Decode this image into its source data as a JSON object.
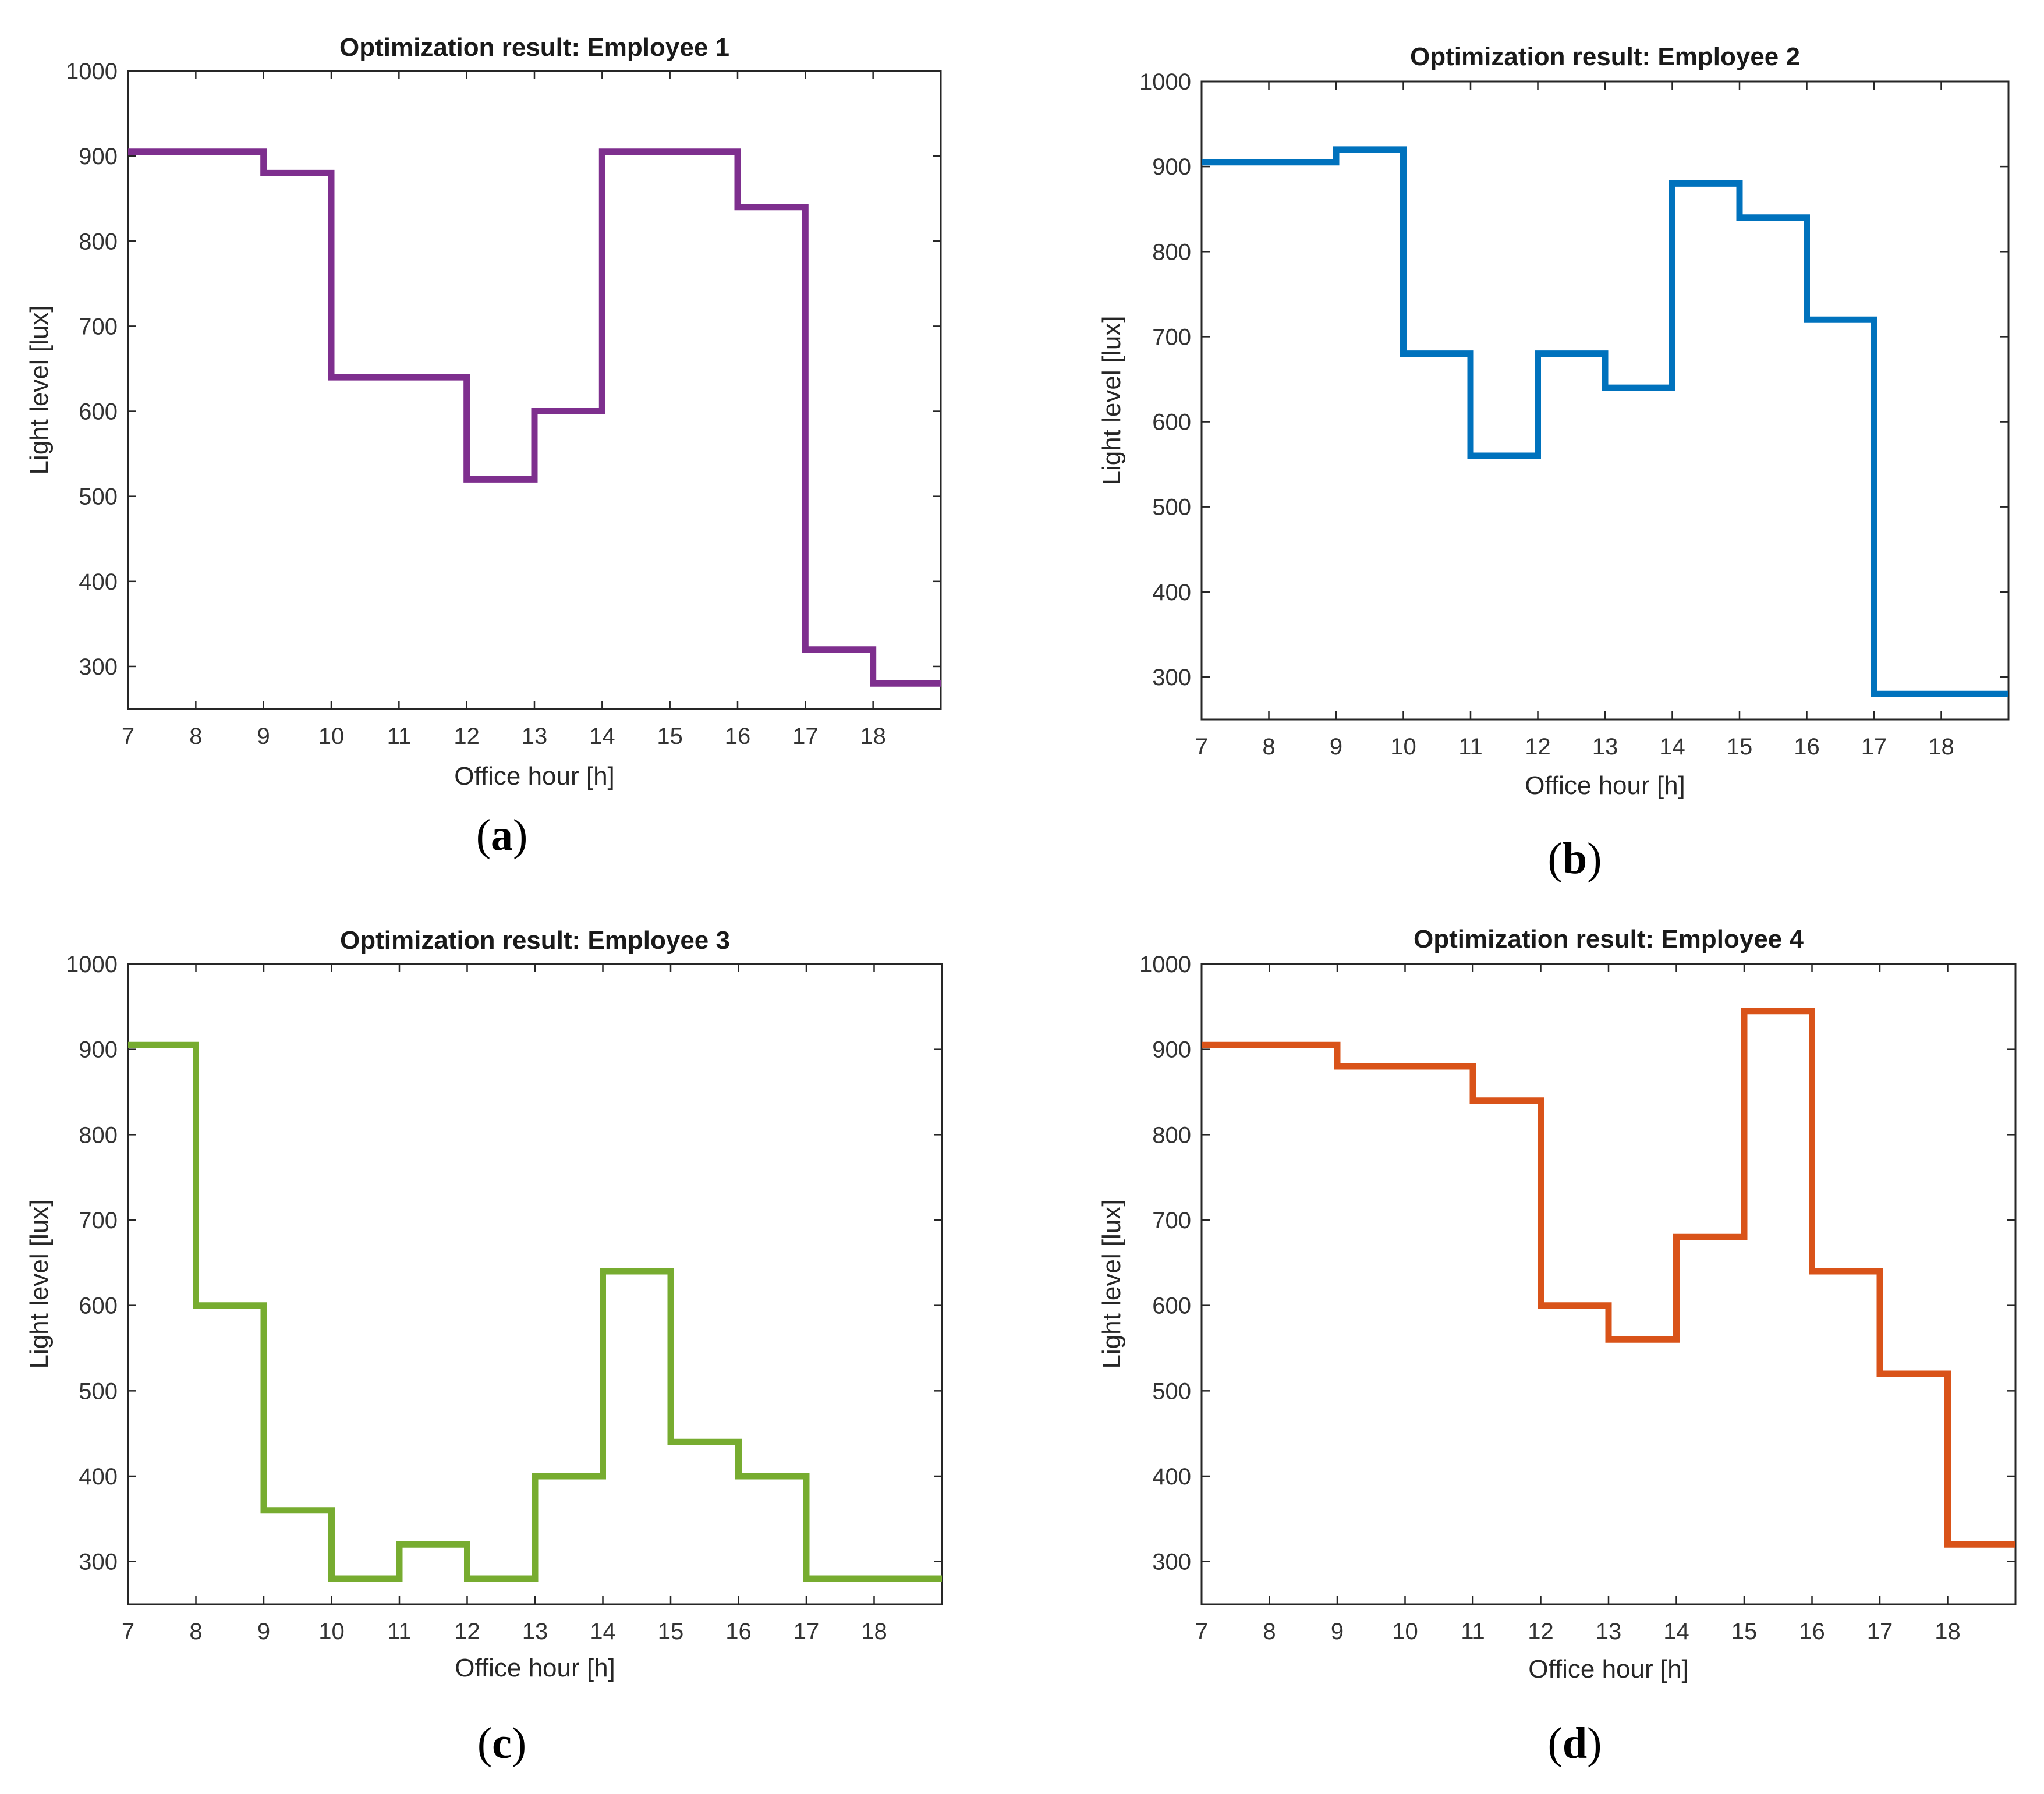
{
  "chart_data": [
    {
      "type": "line",
      "step": "post",
      "title": "Optimization result: Employee 1",
      "xlabel": "Office hour [h]",
      "ylabel": "Light level [lux]",
      "panel_label": "a",
      "xlim": [
        7,
        19
      ],
      "ylim": [
        250,
        1000
      ],
      "xticks": [
        "7",
        "8",
        "9",
        "10",
        "11",
        "12",
        "13",
        "14",
        "15",
        "16",
        "17",
        "18"
      ],
      "yticks": [
        "300",
        "400",
        "500",
        "600",
        "700",
        "800",
        "900",
        "1000"
      ],
      "color": "#7E2F8E",
      "x": [
        7,
        8,
        9,
        10,
        11,
        12,
        13,
        14,
        15,
        16,
        17,
        18
      ],
      "y": [
        905,
        905,
        880,
        640,
        640,
        520,
        600,
        905,
        905,
        840,
        320,
        280
      ]
    },
    {
      "type": "line",
      "step": "post",
      "title": "Optimization result: Employee 2",
      "xlabel": "Office hour [h]",
      "ylabel": "Light level [lux]",
      "panel_label": "b",
      "xlim": [
        7,
        19
      ],
      "ylim": [
        250,
        1000
      ],
      "xticks": [
        "7",
        "8",
        "9",
        "10",
        "11",
        "12",
        "13",
        "14",
        "15",
        "16",
        "17",
        "18"
      ],
      "yticks": [
        "300",
        "400",
        "500",
        "600",
        "700",
        "800",
        "900",
        "1000"
      ],
      "color": "#0072BD",
      "x": [
        7,
        8,
        9,
        10,
        11,
        12,
        13,
        14,
        15,
        16,
        17,
        18
      ],
      "y": [
        905,
        905,
        920,
        680,
        560,
        680,
        640,
        880,
        840,
        720,
        280,
        280
      ]
    },
    {
      "type": "line",
      "step": "post",
      "title": "Optimization result: Employee 3",
      "xlabel": "Office hour [h]",
      "ylabel": "Light level [lux]",
      "panel_label": "c",
      "xlim": [
        7,
        19
      ],
      "ylim": [
        250,
        1000
      ],
      "xticks": [
        "7",
        "8",
        "9",
        "10",
        "11",
        "12",
        "13",
        "14",
        "15",
        "16",
        "17",
        "18"
      ],
      "yticks": [
        "300",
        "400",
        "500",
        "600",
        "700",
        "800",
        "900",
        "1000"
      ],
      "color": "#77AC30",
      "x": [
        7,
        8,
        9,
        10,
        11,
        12,
        13,
        14,
        15,
        16,
        17,
        18
      ],
      "y": [
        905,
        600,
        360,
        280,
        320,
        280,
        400,
        640,
        440,
        400,
        280,
        280
      ]
    },
    {
      "type": "line",
      "step": "post",
      "title": "Optimization result: Employee 4",
      "xlabel": "Office hour [h]",
      "ylabel": "Light level [lux]",
      "panel_label": "d",
      "xlim": [
        7,
        19
      ],
      "ylim": [
        250,
        1000
      ],
      "xticks": [
        "7",
        "8",
        "9",
        "10",
        "11",
        "12",
        "13",
        "14",
        "15",
        "16",
        "17",
        "18"
      ],
      "yticks": [
        "300",
        "400",
        "500",
        "600",
        "700",
        "800",
        "900",
        "1000"
      ],
      "color": "#D95319",
      "x": [
        7,
        8,
        9,
        10,
        11,
        12,
        13,
        14,
        15,
        16,
        17,
        18
      ],
      "y": [
        905,
        905,
        880,
        880,
        840,
        600,
        560,
        680,
        945,
        640,
        520,
        320
      ]
    }
  ]
}
